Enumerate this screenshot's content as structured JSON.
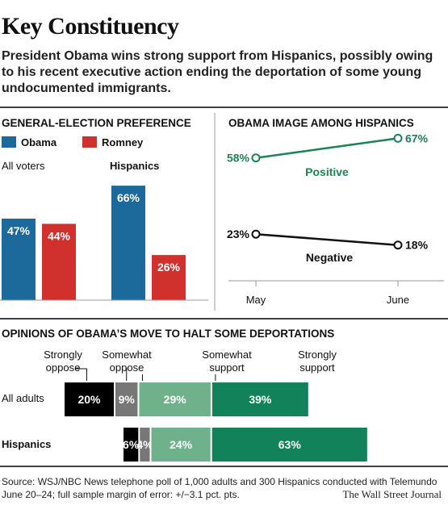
{
  "headline": "Key Constituency",
  "dek": "President Obama wins strong support from Hispanics, possibly owing to his recent executive action ending the deportation of some young undocumented immigrants.",
  "source": "Source: WSJ/NBC News telephone poll of 1,000 adults and 300 Hispanics conducted with Telemundo June 20–24; full sample margin of error: +/−3.1 pct. pts.",
  "credit": "The Wall Street Journal",
  "colors": {
    "obama": "#1c6a9c",
    "romney": "#d0312d",
    "positive_line": "#198553",
    "negative_line": "#111111",
    "strongly_oppose": "#000000",
    "somewhat_oppose": "#777777",
    "somewhat_support": "#6fb18a",
    "strongly_support": "#12825a"
  },
  "chart_data": [
    {
      "type": "bar",
      "title": "GENERAL-ELECTION PREFERENCE",
      "legend": [
        "Obama",
        "Romney"
      ],
      "categories": [
        "All voters",
        "Hispanics"
      ],
      "series": [
        {
          "name": "Obama",
          "values": [
            47,
            66
          ]
        },
        {
          "name": "Romney",
          "values": [
            44,
            26
          ]
        }
      ],
      "value_labels": {
        "Obama": [
          "47%",
          "66%"
        ],
        "Romney": [
          "44%",
          "26%"
        ]
      },
      "ylim": [
        0,
        75
      ]
    },
    {
      "type": "line",
      "title": "OBAMA IMAGE AMONG HISPANICS",
      "x": [
        "May",
        "June"
      ],
      "series": [
        {
          "name": "Positive",
          "values": [
            58,
            67
          ],
          "labels": [
            "58%",
            "67%"
          ]
        },
        {
          "name": "Negative",
          "values": [
            23,
            18
          ],
          "labels": [
            "23%",
            "18%"
          ]
        }
      ],
      "ylim": [
        10,
        70
      ]
    },
    {
      "type": "bar",
      "orientation": "horizontal-stacked",
      "title": "OPINIONS OF OBAMA’S MOVE TO HALT SOME DEPORTATIONS",
      "categories": [
        "All adults",
        "Hispanics"
      ],
      "segment_names": [
        "Strongly oppose",
        "Somewhat oppose",
        "Somewhat support",
        "Strongly support"
      ],
      "segment_header_lines": [
        [
          "Strongly",
          "oppose"
        ],
        [
          "Somewhat",
          "oppose"
        ],
        [
          "Somewhat",
          "support"
        ],
        [
          "Strongly",
          "support"
        ]
      ],
      "rows": [
        {
          "name": "All adults",
          "values": [
            20,
            9,
            29,
            39
          ],
          "labels": [
            "20%",
            "9%",
            "29%",
            "39%"
          ]
        },
        {
          "name": "Hispanics",
          "values": [
            6,
            4,
            24,
            63
          ],
          "labels": [
            "6%",
            "4%",
            "24%",
            "63%"
          ]
        }
      ]
    }
  ]
}
